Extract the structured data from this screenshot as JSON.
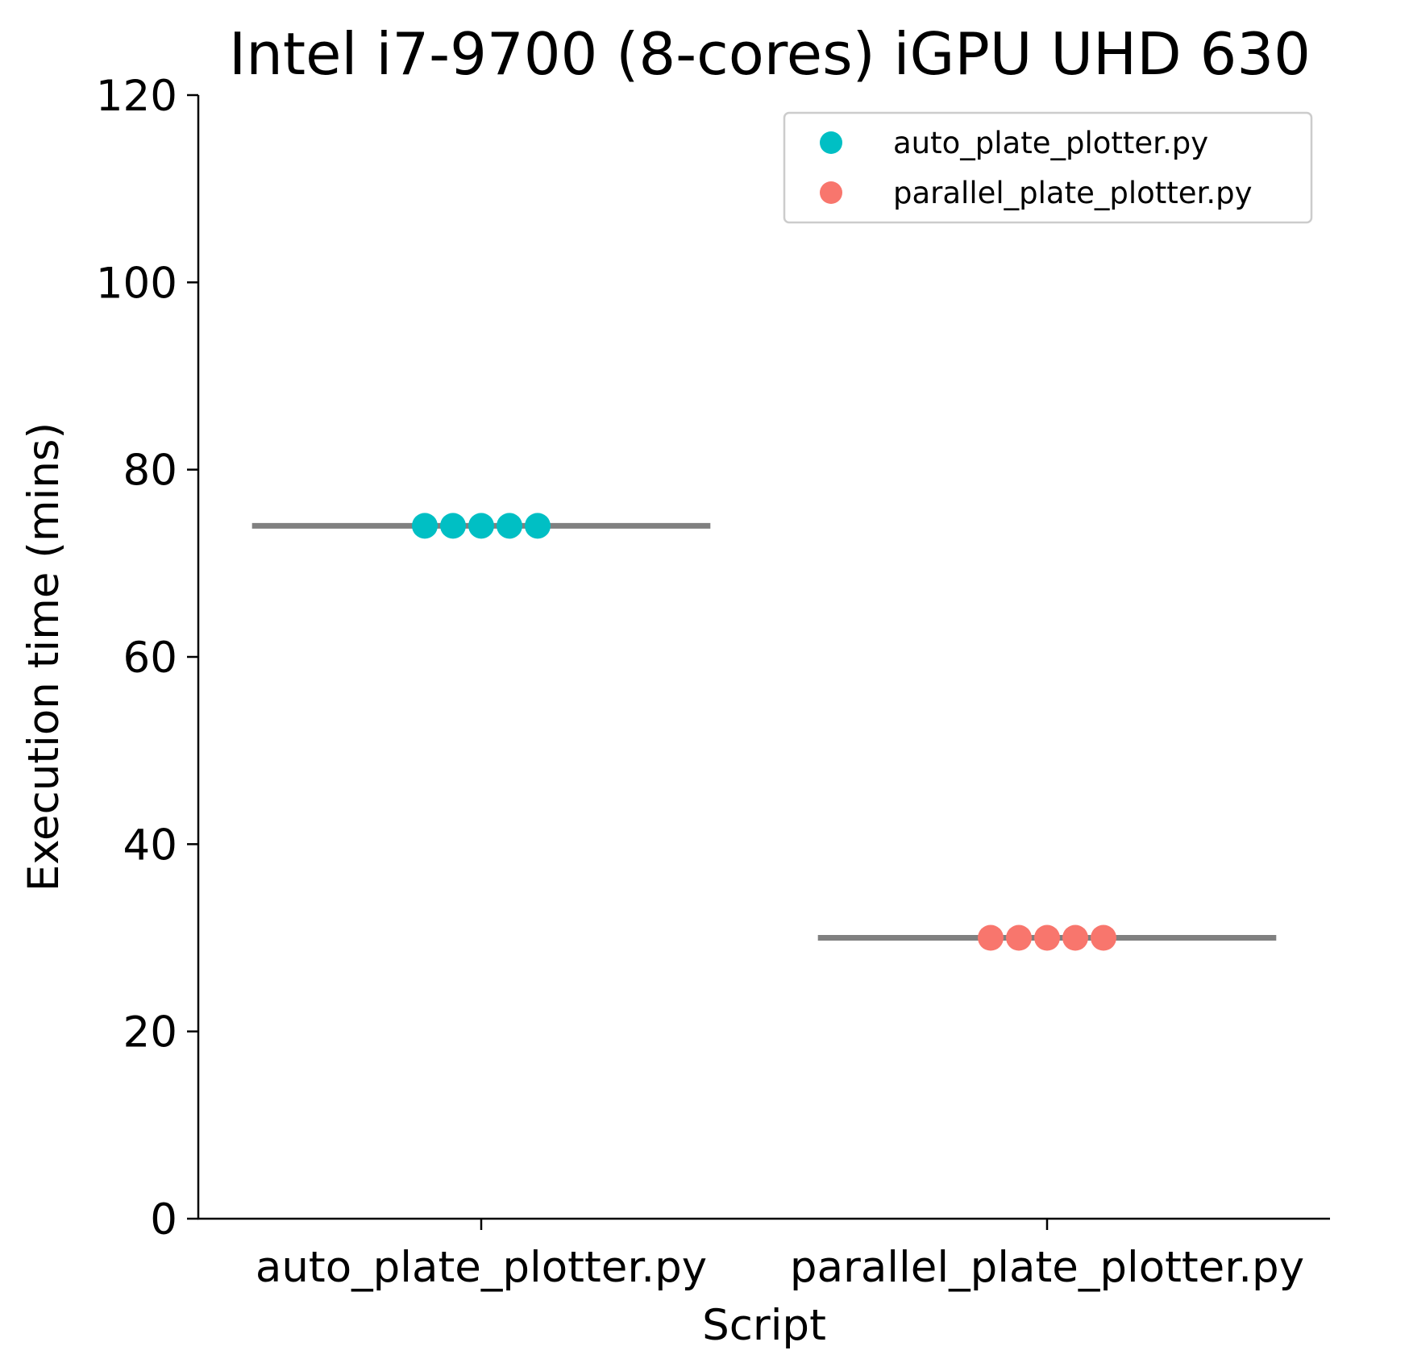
{
  "chart_data": {
    "type": "scatter",
    "title": "Intel i7-9700 (8-cores) iGPU UHD 630",
    "xlabel": "Script",
    "ylabel": "Execution time (mins)",
    "categories": [
      "auto_plate_plotter.py",
      "parallel_plate_plotter.py"
    ],
    "ylim": [
      0,
      120
    ],
    "yticks": [
      0,
      20,
      40,
      60,
      80,
      100,
      120
    ],
    "grid": false,
    "legend_position": "top-right",
    "series": [
      {
        "name": "auto_plate_plotter.py",
        "category": "auto_plate_plotter.py",
        "color": "#00bfc4",
        "values": [
          74,
          74,
          74,
          74,
          74
        ],
        "mean": 74
      },
      {
        "name": "parallel_plate_plotter.py",
        "category": "parallel_plate_plotter.py",
        "color": "#f8766d",
        "values": [
          30,
          30,
          30,
          30,
          30
        ],
        "mean": 30
      }
    ],
    "mean_line_color": "#808080"
  }
}
